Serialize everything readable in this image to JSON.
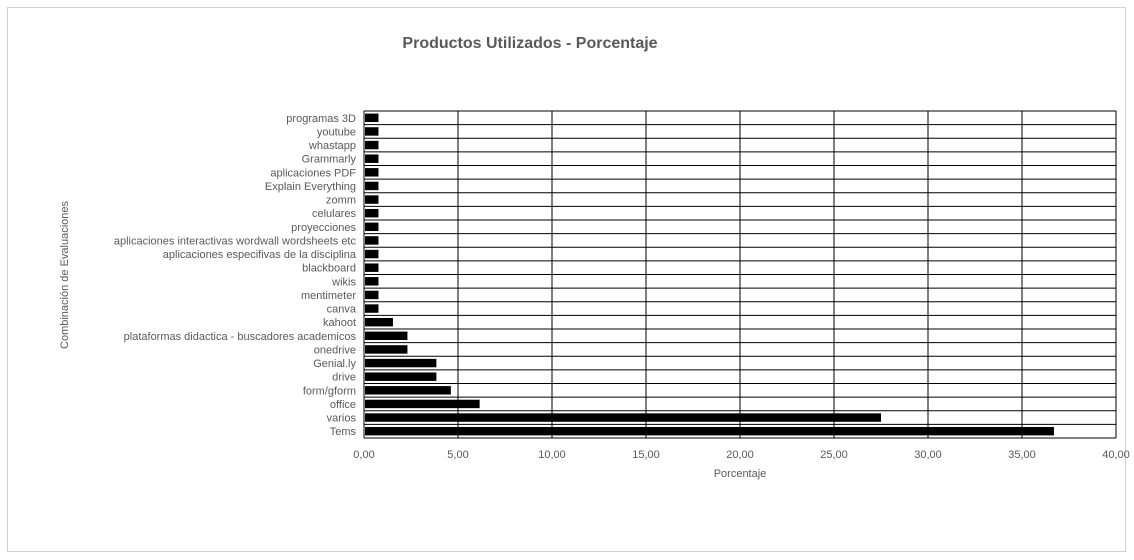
{
  "chart_data": {
    "type": "bar",
    "orientation": "horizontal",
    "title": "Productos Utilizados - Porcentaje",
    "xlabel": "Porcentaje",
    "ylabel": "Combinación de Evaluaciones",
    "xlim": [
      0,
      40
    ],
    "xticks": [
      "0,00",
      "5,00",
      "10,00",
      "15,00",
      "20,00",
      "25,00",
      "30,00",
      "35,00",
      "40,00"
    ],
    "grid": true,
    "bar_color": "#000000",
    "categories": [
      "programas 3D",
      "youtube",
      "whastapp",
      "Grammarly",
      "aplicaciones PDF",
      "Explain Everything",
      "zomm",
      "celulares",
      "proyecciones",
      "aplicaciones interactivas wordwall wordsheets etc",
      "aplicaciones especifivas de la disciplina",
      "blackboard",
      "wikis",
      "mentimeter",
      "canva",
      "kahoot",
      "plataformas didactica - buscadores academicos",
      "onedrive",
      "Genial.ly",
      "drive",
      "form/gform",
      "office",
      "varios",
      "Tems"
    ],
    "values": [
      0.77,
      0.77,
      0.77,
      0.77,
      0.77,
      0.77,
      0.77,
      0.77,
      0.77,
      0.77,
      0.77,
      0.77,
      0.77,
      0.77,
      0.77,
      1.54,
      2.31,
      2.31,
      3.85,
      3.85,
      4.62,
      6.15,
      27.5,
      36.7
    ]
  }
}
